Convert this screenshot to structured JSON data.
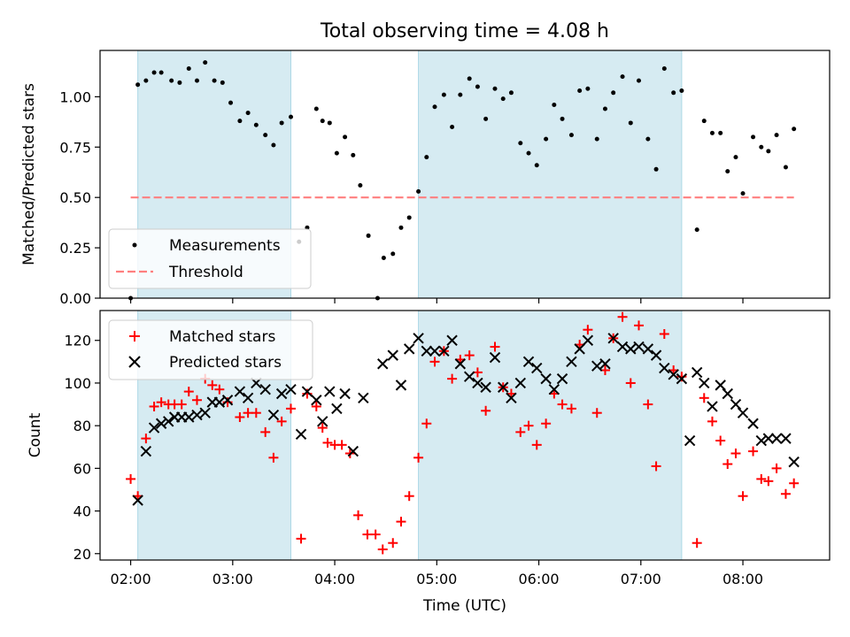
{
  "chart_data": {
    "type": "scatter",
    "title": "Total observing time = 4.08 h",
    "xlabel": "Time (UTC)",
    "x_unit": "hours UTC",
    "x_ticks": [
      "02:00",
      "03:00",
      "04:00",
      "05:00",
      "06:00",
      "07:00",
      "08:00"
    ],
    "xlim": [
      1.7,
      8.85
    ],
    "shaded_intervals": [
      [
        2.07,
        3.57
      ],
      [
        4.82,
        7.4
      ]
    ],
    "colors": {
      "shade": "#add8e6",
      "measurements": "#000000",
      "threshold": "#ff7f7f",
      "matched": "#ff0000",
      "predicted": "#000000"
    },
    "panels": [
      {
        "ylabel": "Matched/Predicted stars",
        "ylim": [
          0.0,
          1.23
        ],
        "y_ticks": [
          "0.00",
          "0.25",
          "0.50",
          "0.75",
          "1.00"
        ],
        "legend": {
          "placement": "lower-left",
          "entries": [
            "Measurements",
            "Threshold"
          ]
        },
        "threshold": {
          "name": "Threshold",
          "value": 0.5,
          "x_range": [
            2.0,
            8.5
          ]
        },
        "series": [
          {
            "name": "Measurements",
            "marker": "dot",
            "points": [
              [
                2.0,
                0.0
              ],
              [
                2.07,
                1.06
              ],
              [
                2.15,
                1.08
              ],
              [
                2.23,
                1.12
              ],
              [
                2.3,
                1.12
              ],
              [
                2.4,
                1.08
              ],
              [
                2.48,
                1.07
              ],
              [
                2.57,
                1.14
              ],
              [
                2.65,
                1.08
              ],
              [
                2.73,
                1.17
              ],
              [
                2.82,
                1.08
              ],
              [
                2.9,
                1.07
              ],
              [
                2.98,
                0.97
              ],
              [
                3.07,
                0.88
              ],
              [
                3.15,
                0.92
              ],
              [
                3.23,
                0.86
              ],
              [
                3.32,
                0.81
              ],
              [
                3.4,
                0.76
              ],
              [
                3.48,
                0.87
              ],
              [
                3.57,
                0.9
              ],
              [
                3.65,
                0.28
              ],
              [
                3.73,
                0.35
              ],
              [
                3.82,
                0.94
              ],
              [
                3.88,
                0.88
              ],
              [
                3.95,
                0.87
              ],
              [
                4.02,
                0.72
              ],
              [
                4.1,
                0.8
              ],
              [
                4.18,
                0.71
              ],
              [
                4.25,
                0.56
              ],
              [
                4.33,
                0.31
              ],
              [
                4.42,
                0.0
              ],
              [
                4.48,
                0.2
              ],
              [
                4.57,
                0.22
              ],
              [
                4.65,
                0.35
              ],
              [
                4.73,
                0.4
              ],
              [
                4.82,
                0.53
              ],
              [
                4.9,
                0.7
              ],
              [
                4.98,
                0.95
              ],
              [
                5.07,
                1.01
              ],
              [
                5.15,
                0.85
              ],
              [
                5.23,
                1.01
              ],
              [
                5.32,
                1.09
              ],
              [
                5.4,
                1.05
              ],
              [
                5.48,
                0.89
              ],
              [
                5.57,
                1.04
              ],
              [
                5.65,
                0.99
              ],
              [
                5.73,
                1.02
              ],
              [
                5.82,
                0.77
              ],
              [
                5.9,
                0.72
              ],
              [
                5.98,
                0.66
              ],
              [
                6.07,
                0.79
              ],
              [
                6.15,
                0.96
              ],
              [
                6.23,
                0.89
              ],
              [
                6.32,
                0.81
              ],
              [
                6.4,
                1.03
              ],
              [
                6.48,
                1.04
              ],
              [
                6.57,
                0.79
              ],
              [
                6.65,
                0.94
              ],
              [
                6.73,
                1.02
              ],
              [
                6.82,
                1.1
              ],
              [
                6.9,
                0.87
              ],
              [
                6.98,
                1.08
              ],
              [
                7.07,
                0.79
              ],
              [
                7.15,
                0.64
              ],
              [
                7.23,
                1.14
              ],
              [
                7.32,
                1.02
              ],
              [
                7.4,
                1.03
              ],
              [
                7.55,
                0.34
              ],
              [
                7.62,
                0.88
              ],
              [
                7.7,
                0.82
              ],
              [
                7.78,
                0.82
              ],
              [
                7.85,
                0.63
              ],
              [
                7.93,
                0.7
              ],
              [
                8.0,
                0.52
              ],
              [
                8.1,
                0.8
              ],
              [
                8.18,
                0.75
              ],
              [
                8.25,
                0.73
              ],
              [
                8.33,
                0.81
              ],
              [
                8.42,
                0.65
              ],
              [
                8.5,
                0.84
              ]
            ]
          }
        ]
      },
      {
        "ylabel": "Count",
        "ylim": [
          17,
          134
        ],
        "y_ticks": [
          "20",
          "40",
          "60",
          "80",
          "100",
          "120"
        ],
        "legend": {
          "placement": "upper-left",
          "entries": [
            "Matched stars",
            "Predicted stars"
          ]
        },
        "series": [
          {
            "name": "Matched stars",
            "marker": "plus",
            "points": [
              [
                2.0,
                55
              ],
              [
                2.07,
                47
              ],
              [
                2.15,
                74
              ],
              [
                2.23,
                89
              ],
              [
                2.3,
                91
              ],
              [
                2.37,
                90
              ],
              [
                2.43,
                90
              ],
              [
                2.5,
                90
              ],
              [
                2.57,
                96
              ],
              [
                2.65,
                92
              ],
              [
                2.73,
                102
              ],
              [
                2.8,
                99
              ],
              [
                2.87,
                97
              ],
              [
                2.95,
                91
              ],
              [
                3.07,
                84
              ],
              [
                3.15,
                86
              ],
              [
                3.23,
                86
              ],
              [
                3.32,
                77
              ],
              [
                3.4,
                65
              ],
              [
                3.48,
                82
              ],
              [
                3.57,
                88
              ],
              [
                3.67,
                27
              ],
              [
                3.73,
                95
              ],
              [
                3.82,
                89
              ],
              [
                3.88,
                79
              ],
              [
                3.93,
                72
              ],
              [
                4.0,
                71
              ],
              [
                4.07,
                71
              ],
              [
                4.15,
                67
              ],
              [
                4.23,
                38
              ],
              [
                4.32,
                29
              ],
              [
                4.4,
                29
              ],
              [
                4.47,
                22
              ],
              [
                4.57,
                25
              ],
              [
                4.65,
                35
              ],
              [
                4.73,
                47
              ],
              [
                4.82,
                65
              ],
              [
                4.9,
                81
              ],
              [
                4.98,
                110
              ],
              [
                5.07,
                115
              ],
              [
                5.15,
                102
              ],
              [
                5.23,
                111
              ],
              [
                5.32,
                113
              ],
              [
                5.4,
                105
              ],
              [
                5.48,
                87
              ],
              [
                5.57,
                117
              ],
              [
                5.65,
                98
              ],
              [
                5.73,
                95
              ],
              [
                5.82,
                77
              ],
              [
                5.9,
                80
              ],
              [
                5.98,
                71
              ],
              [
                6.07,
                81
              ],
              [
                6.15,
                95
              ],
              [
                6.23,
                90
              ],
              [
                6.32,
                88
              ],
              [
                6.4,
                118
              ],
              [
                6.48,
                125
              ],
              [
                6.57,
                86
              ],
              [
                6.65,
                106
              ],
              [
                6.73,
                121
              ],
              [
                6.82,
                131
              ],
              [
                6.9,
                100
              ],
              [
                6.98,
                127
              ],
              [
                7.07,
                90
              ],
              [
                7.15,
                61
              ],
              [
                7.23,
                123
              ],
              [
                7.32,
                106
              ],
              [
                7.4,
                103
              ],
              [
                7.55,
                25
              ],
              [
                7.62,
                93
              ],
              [
                7.7,
                82
              ],
              [
                7.78,
                73
              ],
              [
                7.85,
                62
              ],
              [
                7.93,
                67
              ],
              [
                8.0,
                47
              ],
              [
                8.1,
                68
              ],
              [
                8.18,
                55
              ],
              [
                8.25,
                54
              ],
              [
                8.33,
                60
              ],
              [
                8.42,
                48
              ],
              [
                8.5,
                53
              ]
            ]
          },
          {
            "name": "Predicted stars",
            "marker": "x",
            "points": [
              [
                2.07,
                45
              ],
              [
                2.15,
                68
              ],
              [
                2.23,
                79
              ],
              [
                2.3,
                81
              ],
              [
                2.37,
                82
              ],
              [
                2.43,
                84
              ],
              [
                2.5,
                84
              ],
              [
                2.57,
                84
              ],
              [
                2.65,
                85
              ],
              [
                2.73,
                86
              ],
              [
                2.8,
                91
              ],
              [
                2.87,
                91
              ],
              [
                2.95,
                92
              ],
              [
                3.07,
                96
              ],
              [
                3.15,
                93
              ],
              [
                3.23,
                100
              ],
              [
                3.32,
                97
              ],
              [
                3.4,
                85
              ],
              [
                3.48,
                95
              ],
              [
                3.57,
                97
              ],
              [
                3.67,
                76
              ],
              [
                3.73,
                96
              ],
              [
                3.82,
                92
              ],
              [
                3.88,
                82
              ],
              [
                3.95,
                96
              ],
              [
                4.02,
                88
              ],
              [
                4.1,
                95
              ],
              [
                4.18,
                68
              ],
              [
                4.28,
                93
              ],
              [
                4.47,
                109
              ],
              [
                4.57,
                113
              ],
              [
                4.65,
                99
              ],
              [
                4.73,
                116
              ],
              [
                4.82,
                121
              ],
              [
                4.9,
                115
              ],
              [
                4.98,
                115
              ],
              [
                5.07,
                115
              ],
              [
                5.15,
                120
              ],
              [
                5.23,
                109
              ],
              [
                5.32,
                103
              ],
              [
                5.4,
                100
              ],
              [
                5.48,
                98
              ],
              [
                5.57,
                112
              ],
              [
                5.65,
                98
              ],
              [
                5.73,
                93
              ],
              [
                5.82,
                100
              ],
              [
                5.9,
                110
              ],
              [
                5.98,
                107
              ],
              [
                6.07,
                102
              ],
              [
                6.15,
                97
              ],
              [
                6.23,
                102
              ],
              [
                6.32,
                110
              ],
              [
                6.4,
                116
              ],
              [
                6.48,
                120
              ],
              [
                6.57,
                108
              ],
              [
                6.65,
                109
              ],
              [
                6.73,
                121
              ],
              [
                6.82,
                117
              ],
              [
                6.9,
                116
              ],
              [
                6.98,
                117
              ],
              [
                7.07,
                116
              ],
              [
                7.15,
                113
              ],
              [
                7.23,
                107
              ],
              [
                7.32,
                104
              ],
              [
                7.4,
                102
              ],
              [
                7.48,
                73
              ],
              [
                7.55,
                105
              ],
              [
                7.62,
                100
              ],
              [
                7.7,
                89
              ],
              [
                7.78,
                99
              ],
              [
                7.85,
                95
              ],
              [
                7.93,
                90
              ],
              [
                8.0,
                86
              ],
              [
                8.1,
                81
              ],
              [
                8.18,
                73
              ],
              [
                8.25,
                74
              ],
              [
                8.33,
                74
              ],
              [
                8.42,
                74
              ],
              [
                8.5,
                63
              ]
            ]
          }
        ]
      }
    ]
  }
}
